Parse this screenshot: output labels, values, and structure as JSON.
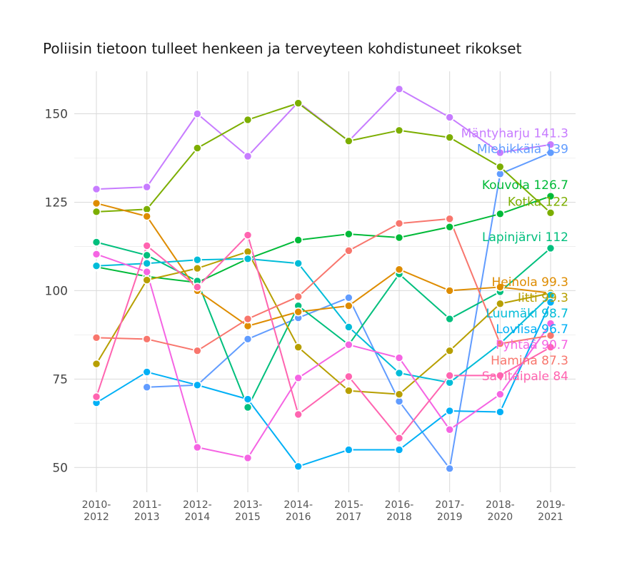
{
  "chart_data": {
    "type": "line",
    "title": "Poliisin tietoon tulleet henkeen ja terveyteen kohdistuneet rikokset",
    "xlabel": "",
    "ylabel": "",
    "x": [
      "2010-2012",
      "2011-2013",
      "2012-2014",
      "2013-2015",
      "2014-2016",
      "2015-2017",
      "2016-2018",
      "2017-2019",
      "2018-2020",
      "2019-2021"
    ],
    "ylim": [
      43,
      162
    ],
    "yticks": [
      50,
      75,
      100,
      125,
      150
    ],
    "grid": true,
    "legend": "none",
    "series": [
      {
        "name": "Mäntyharju",
        "color": "#c77cff",
        "end_label": "Mäntyharju 141.3",
        "values": [
          128.7,
          129.3,
          150.0,
          138.0,
          153.3,
          142.3,
          157.0,
          149.0,
          139.0,
          141.3
        ]
      },
      {
        "name": "Miehikkälä",
        "color": "#619cff",
        "end_label": "Miehikkälä 139",
        "values": [
          null,
          72.7,
          73.3,
          86.3,
          92.3,
          98.0,
          68.7,
          49.7,
          133.0,
          139.0
        ]
      },
      {
        "name": "Kouvola",
        "color": "#00ba38",
        "end_label": "Kouvola 126.7",
        "values": [
          106.7,
          104.0,
          102.3,
          109.0,
          114.3,
          116.0,
          115.0,
          118.0,
          121.7,
          126.7
        ]
      },
      {
        "name": "Kotka",
        "color": "#7cae00",
        "end_label": "Kotka 122",
        "values": [
          122.3,
          123.0,
          140.3,
          148.3,
          153.0,
          142.3,
          145.3,
          143.3,
          135.0,
          122.0
        ]
      },
      {
        "name": "Lapinjärvi",
        "color": "#00bf7d",
        "end_label": "Lapinjärvi 112",
        "values": [
          113.7,
          110.0,
          102.7,
          67.0,
          95.7,
          84.7,
          104.7,
          92.0,
          99.7,
          112.0
        ]
      },
      {
        "name": "Heinola",
        "color": "#de8c00",
        "end_label": "Heinola 99.3",
        "values": [
          124.7,
          121.0,
          100.0,
          90.0,
          94.0,
          95.7,
          106.0,
          100.0,
          101.0,
          99.3
        ]
      },
      {
        "name": "Iitti",
        "color": "#b79f00",
        "end_label": "Iitti 99.3",
        "values": [
          79.3,
          103.0,
          106.3,
          111.0,
          84.0,
          71.7,
          70.7,
          83.0,
          96.3,
          99.3
        ]
      },
      {
        "name": "Luumäki",
        "color": "#00bcd8",
        "end_label": "Luumäki 98.7",
        "values": [
          107.0,
          107.7,
          108.7,
          109.0,
          107.7,
          89.7,
          76.7,
          74.0,
          85.0,
          98.7
        ]
      },
      {
        "name": "Loviisa",
        "color": "#00b0f6",
        "end_label": "Loviisa 96.7",
        "values": [
          68.3,
          77.0,
          73.3,
          69.3,
          50.3,
          55.0,
          55.0,
          66.0,
          65.7,
          96.7
        ]
      },
      {
        "name": "Pyhtää",
        "color": "#f564e3",
        "end_label": "Pyhtää 90.7",
        "values": [
          110.3,
          105.3,
          55.7,
          52.7,
          75.3,
          84.7,
          81.0,
          60.7,
          70.7,
          90.7
        ]
      },
      {
        "name": "Hamina",
        "color": "#f8766d",
        "end_label": "Hamina 87.3",
        "values": [
          86.7,
          86.3,
          83.0,
          92.0,
          98.3,
          111.3,
          119.0,
          120.3,
          85.0,
          87.3
        ]
      },
      {
        "name": "Savitaipale",
        "color": "#ff64b0",
        "end_label": "Savitaipale 84",
        "values": [
          70.0,
          112.7,
          101.0,
          115.7,
          65.0,
          75.7,
          58.3,
          76.0,
          76.0,
          84.0
        ]
      }
    ]
  }
}
